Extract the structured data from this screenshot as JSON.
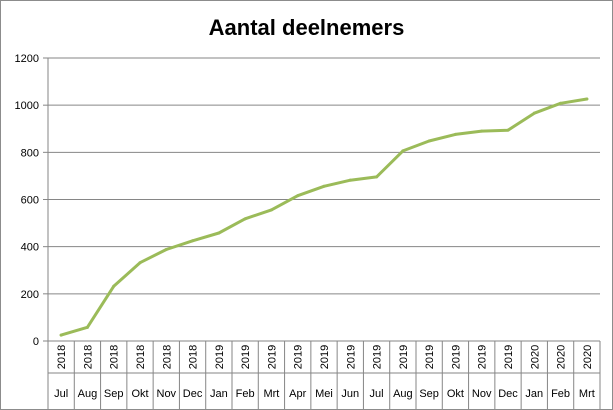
{
  "chart_data": {
    "type": "line",
    "title": "Aantal deelnemers",
    "xlabel": "",
    "ylabel": "",
    "ylim": [
      0,
      1200
    ],
    "yticks": [
      0,
      200,
      400,
      600,
      800,
      1000,
      1200
    ],
    "grid": true,
    "legend": "none",
    "categories": [
      {
        "month": "Jul",
        "year": "2018"
      },
      {
        "month": "Aug",
        "year": "2018"
      },
      {
        "month": "Sep",
        "year": "2018"
      },
      {
        "month": "Okt",
        "year": "2018"
      },
      {
        "month": "Nov",
        "year": "2018"
      },
      {
        "month": "Dec",
        "year": "2018"
      },
      {
        "month": "Jan",
        "year": "2019"
      },
      {
        "month": "Feb",
        "year": "2019"
      },
      {
        "month": "Mrt",
        "year": "2019"
      },
      {
        "month": "Apr",
        "year": "2019"
      },
      {
        "month": "Mei",
        "year": "2019"
      },
      {
        "month": "Jun",
        "year": "2019"
      },
      {
        "month": "Jul",
        "year": "2019"
      },
      {
        "month": "Aug",
        "year": "2019"
      },
      {
        "month": "Sep",
        "year": "2019"
      },
      {
        "month": "Okt",
        "year": "2019"
      },
      {
        "month": "Nov",
        "year": "2019"
      },
      {
        "month": "Dec",
        "year": "2019"
      },
      {
        "month": "Jan",
        "year": "2020"
      },
      {
        "month": "Feb",
        "year": "2020"
      },
      {
        "month": "Mrt",
        "year": "2020"
      }
    ],
    "series": [
      {
        "values": [
          25,
          58,
          232,
          332,
          388,
          425,
          458,
          518,
          556,
          616,
          656,
          682,
          696,
          806,
          848,
          876,
          890,
          894,
          966,
          1008,
          1026
        ]
      }
    ],
    "colors": {
      "line": "#9bbb59",
      "grid": "#868686",
      "axis": "#868686"
    }
  }
}
